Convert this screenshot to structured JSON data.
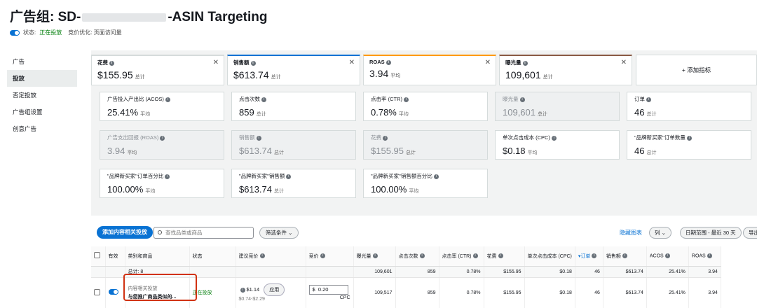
{
  "header": {
    "title_prefix": "广告组: SD-",
    "title_suffix": "-ASIN Targeting",
    "status_label": "状态:",
    "status_value": "正在投放",
    "bid_opt": "竞价优化: 页面访问量"
  },
  "sidebar": {
    "items": [
      "广告",
      "投放",
      "否定投放",
      "广告组设置",
      "创意广告"
    ]
  },
  "kpis": [
    {
      "label": "花费",
      "value": "$155.95",
      "sub": "总计"
    },
    {
      "label": "销售额",
      "value": "$613.74",
      "sub": "总计"
    },
    {
      "label": "ROAS",
      "value": "3.94",
      "sub": "平均"
    },
    {
      "label": "曝光量",
      "value": "109,601",
      "sub": "总计"
    }
  ],
  "add_metric": "+ 添加指标",
  "metrics": [
    {
      "label": "广告投入产出比 (ACOS)",
      "value": "25.41%",
      "sub": "平均"
    },
    {
      "label": "点击次数",
      "value": "859",
      "sub": "总计"
    },
    {
      "label": "点击率 (CTR)",
      "value": "0.78%",
      "sub": "平均"
    },
    {
      "label": "曝光量",
      "value": "109,601",
      "sub": "总计"
    },
    {
      "label": "订单",
      "value": "46",
      "sub": "总计"
    },
    {
      "label": "广告支出回报 (ROAS)",
      "value": "3.94",
      "sub": "平均"
    },
    {
      "label": "销售额",
      "value": "$613.74",
      "sub": "总计"
    },
    {
      "label": "花费",
      "value": "$155.95",
      "sub": "总计"
    },
    {
      "label": "单次点击成本 (CPC)",
      "value": "$0.18",
      "sub": "平均"
    },
    {
      "label": "\"品牌新买家\"订单数量",
      "value": "46",
      "sub": "总计"
    },
    {
      "label": "\"品牌新买家\"订单百分比",
      "value": "100.00%",
      "sub": "平均"
    },
    {
      "label": "\"品牌新买家\"销售额",
      "value": "$613.74",
      "sub": "总计"
    },
    {
      "label": "\"品牌新买家\"销售额百分比",
      "value": "100.00%",
      "sub": "平均"
    }
  ],
  "toolbar": {
    "add_btn": "添加内容相关投放",
    "search_placeholder": "查找品类或商品",
    "filter": "筛选条件",
    "hide_chart": "隐藏图表",
    "columns": "列",
    "date_range": "日期范围 - 最近 30 天",
    "export": "导出"
  },
  "table": {
    "headers": [
      "有效",
      "类别和商品",
      "状态",
      "建议竞价",
      "竞价",
      "曝光量",
      "点击次数",
      "点击率 (CTR)",
      "花费",
      "单次点击成本 (CPC)",
      "订单",
      "销售额",
      "ACOS",
      "ROAS"
    ],
    "total": {
      "label": "总计: 8",
      "impr": "109,601",
      "clicks": "859",
      "ctr": "0.78%",
      "spend": "$155.95",
      "cpc": "$0.18",
      "orders": "46",
      "sales": "$613.74",
      "acos": "25.41%",
      "roas": "3.94"
    },
    "row": {
      "cat_top": "内容相关投放",
      "cat_bottom": "与您推广商品类似的...",
      "status": "正在投放",
      "sugg": "$1.14",
      "range": "$0.74-$2.29",
      "apply": "应用",
      "bid_prefix": "$",
      "bid": "0.20",
      "bid_unit": "CPC",
      "impr": "109,517",
      "clicks": "859",
      "ctr": "0.78%",
      "spend": "$155.95",
      "cpc": "$0.18",
      "orders": "46",
      "sales": "$613.74",
      "acos": "25.41%",
      "roas": "3.94"
    }
  }
}
